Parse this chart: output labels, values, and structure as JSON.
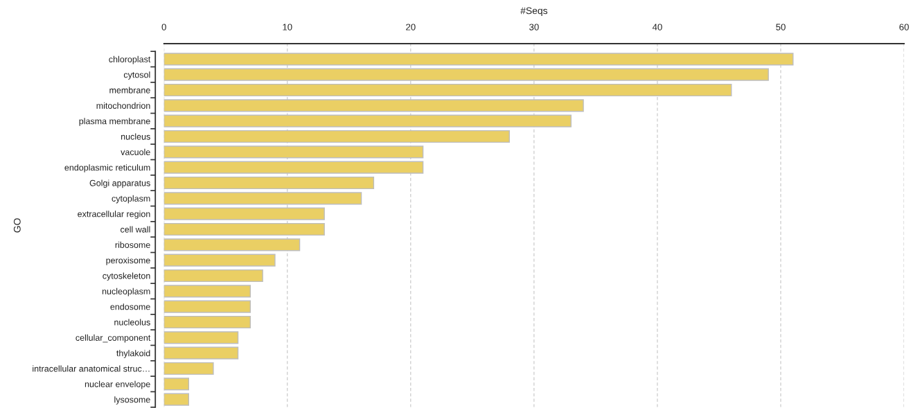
{
  "chart_data": {
    "type": "bar",
    "orientation": "horizontal",
    "xlabel": "#Seqs",
    "ylabel": "GO",
    "categories": [
      "chloroplast",
      "cytosol",
      "membrane",
      "mitochondrion",
      "plasma membrane",
      "nucleus",
      "vacuole",
      "endoplasmic reticulum",
      "Golgi apparatus",
      "cytoplasm",
      "extracellular region",
      "cell wall",
      "ribosome",
      "peroxisome",
      "cytoskeleton",
      "nucleoplasm",
      "endosome",
      "nucleolus",
      "cellular_component",
      "thylakoid",
      "intracellular anatomical struc…",
      "nuclear envelope",
      "lysosome"
    ],
    "values": [
      51,
      49,
      46,
      34,
      33,
      28,
      21,
      21,
      17,
      16,
      13,
      13,
      11,
      9,
      8,
      7,
      7,
      7,
      6,
      6,
      4,
      2,
      2
    ],
    "color": "#eacf64",
    "xlim": [
      0,
      60
    ],
    "xticks": [
      0,
      10,
      20,
      30,
      40,
      50,
      60
    ],
    "grid": "x"
  }
}
